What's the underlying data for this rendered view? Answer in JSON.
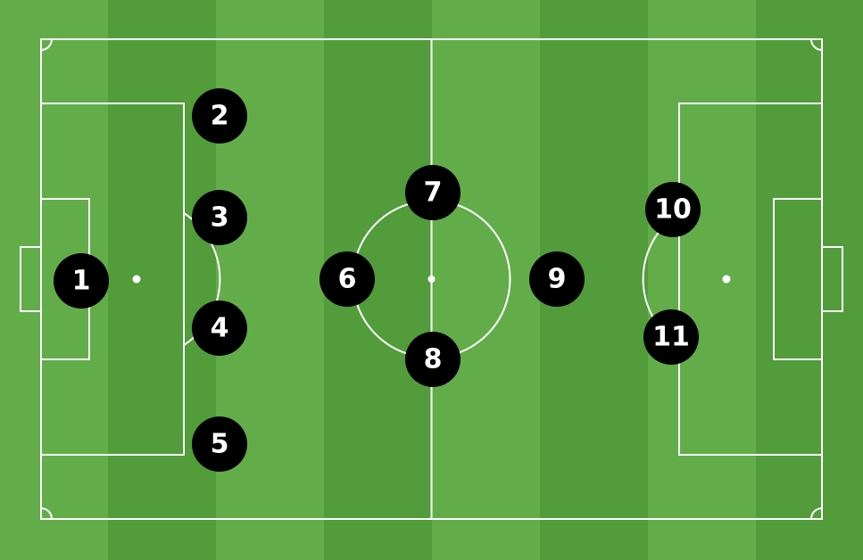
{
  "colors": {
    "stripe_light": "#62ad49",
    "stripe_dark": "#529c3b",
    "lines": "#ffffff",
    "player_fill": "#000000",
    "player_text": "#ffffff"
  },
  "players": [
    {
      "number": "1"
    },
    {
      "number": "2"
    },
    {
      "number": "3"
    },
    {
      "number": "4"
    },
    {
      "number": "5"
    },
    {
      "number": "6"
    },
    {
      "number": "7"
    },
    {
      "number": "8"
    },
    {
      "number": "9"
    },
    {
      "number": "10"
    },
    {
      "number": "11"
    }
  ]
}
